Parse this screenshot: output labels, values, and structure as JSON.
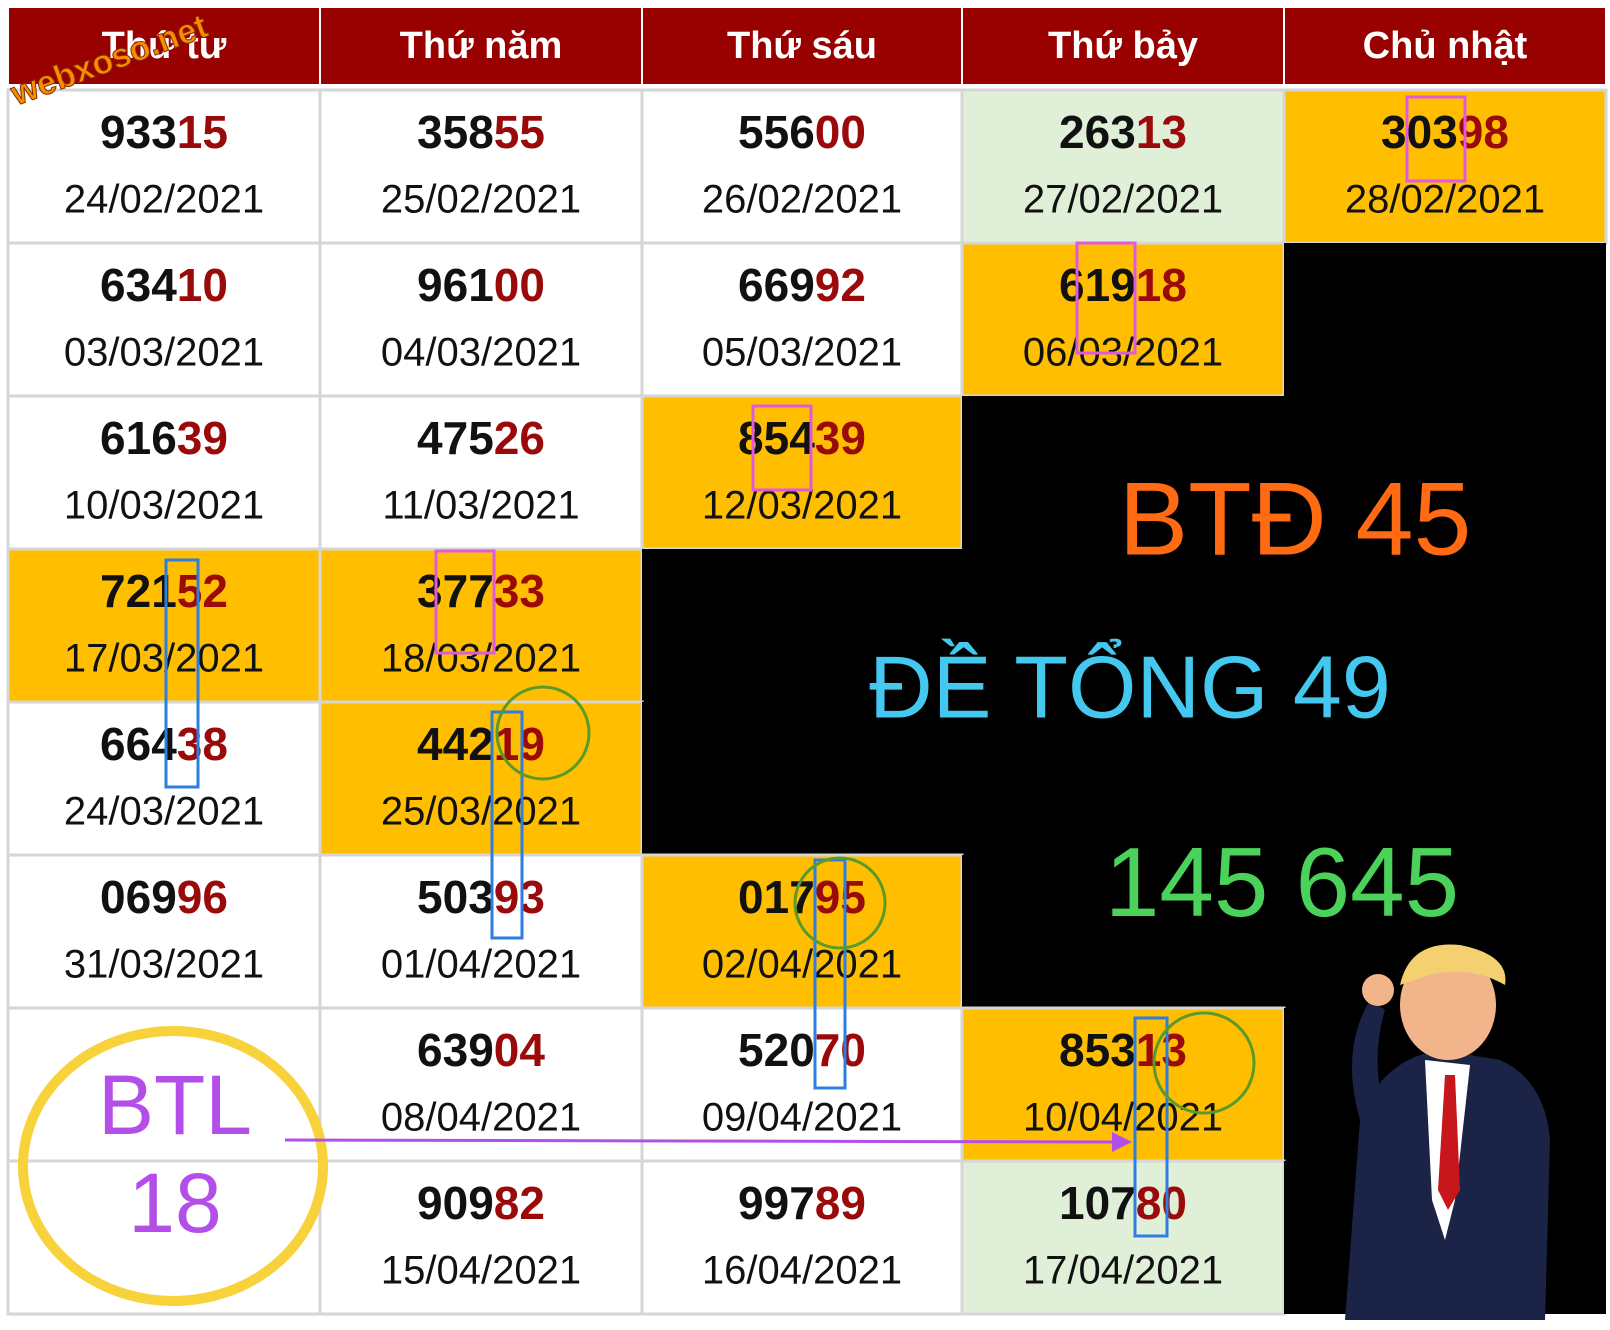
{
  "watermark": "webxoso.net",
  "header": [
    "Thứ tư",
    "Thứ năm",
    "Thứ sáu",
    "Thứ bảy",
    "Chủ nhật"
  ],
  "rows": [
    [
      {
        "number": "93315",
        "date": "24/02/2021",
        "fill": "#ffffff"
      },
      {
        "number": "35855",
        "date": "25/02/2021",
        "fill": "#ffffff"
      },
      {
        "number": "55600",
        "date": "26/02/2021",
        "fill": "#ffffff"
      },
      {
        "number": "26313",
        "date": "27/02/2021",
        "fill": "#e0f0d8"
      },
      {
        "number": "30398",
        "date": "28/02/2021",
        "fill": "#ffbf00"
      }
    ],
    [
      {
        "number": "63410",
        "date": "03/03/2021",
        "fill": "#ffffff"
      },
      {
        "number": "96100",
        "date": "04/03/2021",
        "fill": "#ffffff"
      },
      {
        "number": "66992",
        "date": "05/03/2021",
        "fill": "#ffffff"
      },
      {
        "number": "61918",
        "date": "06/03/2021",
        "fill": "#ffbf00"
      },
      {
        "fill": "#000000"
      }
    ],
    [
      {
        "number": "61639",
        "date": "10/03/2021",
        "fill": "#ffffff"
      },
      {
        "number": "47526",
        "date": "11/03/2021",
        "fill": "#ffffff"
      },
      {
        "number": "85439",
        "date": "12/03/2021",
        "fill": "#ffbf00"
      },
      {
        "fill": "#000000"
      },
      {
        "fill": "#000000"
      }
    ],
    [
      {
        "number": "72152",
        "date": "17/03/2021",
        "fill": "#ffbf00"
      },
      {
        "number": "37733",
        "date": "18/03/2021",
        "fill": "#ffbf00"
      },
      {
        "fill": "#000000"
      },
      {
        "fill": "#000000"
      },
      {
        "fill": "#000000"
      }
    ],
    [
      {
        "number": "66438",
        "date": "24/03/2021",
        "fill": "#ffffff"
      },
      {
        "number": "44219",
        "date": "25/03/2021",
        "fill": "#ffbf00"
      },
      {
        "fill": "#000000"
      },
      {
        "fill": "#000000"
      },
      {
        "fill": "#000000"
      }
    ],
    [
      {
        "number": "06996",
        "date": "31/03/2021",
        "fill": "#ffffff"
      },
      {
        "number": "50393",
        "date": "01/04/2021",
        "fill": "#ffffff"
      },
      {
        "number": "01795",
        "date": "02/04/2021",
        "fill": "#ffbf00"
      },
      {
        "fill": "#000000"
      },
      {
        "fill": "#000000"
      }
    ],
    [
      {
        "fill": "#ffffff"
      },
      {
        "number": "63904",
        "date": "08/04/2021",
        "fill": "#ffffff"
      },
      {
        "number": "52070",
        "date": "09/04/2021",
        "fill": "#ffffff"
      },
      {
        "number": "85313",
        "date": "10/04/2021",
        "fill": "#ffbf00"
      },
      {
        "fill": "#000000"
      }
    ],
    [
      {
        "fill": "#ffffff"
      },
      {
        "number": "90982",
        "date": "15/04/2021",
        "fill": "#ffffff"
      },
      {
        "number": "99789",
        "date": "16/04/2021",
        "fill": "#ffffff"
      },
      {
        "number": "10780",
        "date": "17/04/2021",
        "fill": "#e0f0d8"
      },
      {
        "fill": "#000000"
      }
    ]
  ],
  "annotations": {
    "btd": "BTĐ 45",
    "de_tong": "ĐỀ TỔNG 49",
    "numbers": "145 645",
    "btl": "BTL",
    "btl_value": "18"
  }
}
